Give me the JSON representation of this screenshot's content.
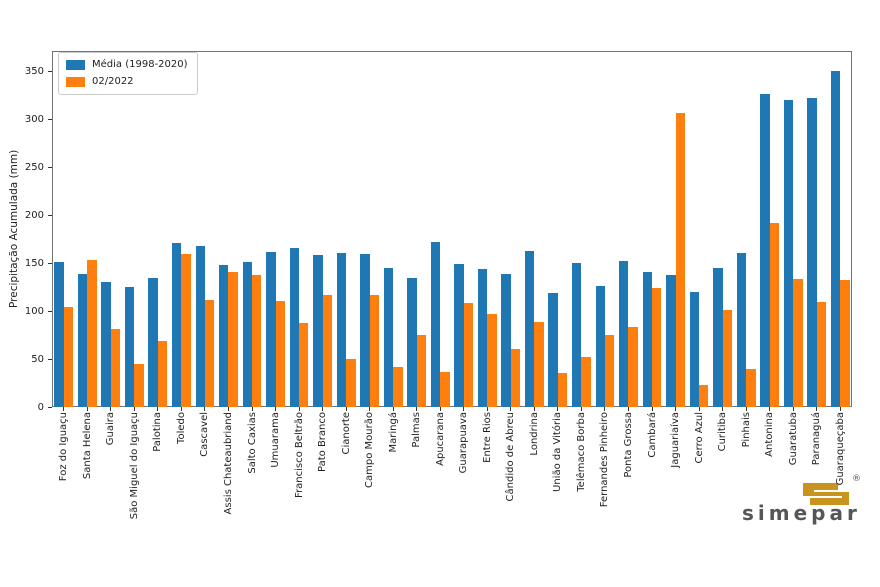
{
  "chart_data": {
    "type": "bar",
    "title": "",
    "xlabel": "",
    "ylabel": "Precipitação Acumulada (mm)",
    "ylim": [
      0,
      370
    ],
    "yticks": [
      0,
      50,
      100,
      150,
      200,
      250,
      300,
      350
    ],
    "grid": false,
    "legend_position": "upper-left",
    "categories": [
      "Foz do Iguaçu",
      "Santa Helena",
      "Guaira",
      "São Miguel do Iguaçu",
      "Palotina",
      "Toledo",
      "Cascavel",
      "Assis Chateaubriand",
      "Salto Caxias",
      "Umuarama",
      "Francisco Beltrão",
      "Pato Branco",
      "Cianorte",
      "Campo Mourão",
      "Maringá",
      "Palmas",
      "Apucarana",
      "Guarapuava",
      "Entre Rios",
      "Cândido de Abreu",
      "Londrina",
      "União da Vitória",
      "Telêmaco Borba",
      "Fernandes Pinheiro",
      "Ponta Grossa",
      "Cambará",
      "Jaguariaíva",
      "Cerro Azul",
      "Curitiba",
      "Pinhais",
      "Antonina",
      "Guaratuba",
      "Paranaguá",
      "Guaraqueçaba"
    ],
    "series": [
      {
        "name": "Média (1998-2020)",
        "color": "#1f77b4",
        "values": [
          151,
          139,
          130,
          125,
          134,
          171,
          168,
          148,
          151,
          161,
          166,
          158,
          160,
          159,
          145,
          134,
          172,
          149,
          144,
          139,
          163,
          119,
          150,
          126,
          152,
          141,
          137,
          120,
          145,
          160,
          326,
          320,
          322,
          350
        ]
      },
      {
        "name": "02/2022",
        "color": "#ff7f0e",
        "values": [
          104,
          153,
          81,
          45,
          69,
          159,
          111,
          141,
          137,
          110,
          88,
          117,
          50,
          117,
          42,
          75,
          36,
          108,
          97,
          60,
          89,
          35,
          52,
          75,
          83,
          124,
          306,
          23,
          101,
          40,
          192,
          133,
          109,
          132
        ]
      }
    ]
  },
  "branding": {
    "logo_text": "simepar",
    "registered_mark": "®",
    "text_color": "#55565a",
    "glyph_color": "#c8941e"
  }
}
